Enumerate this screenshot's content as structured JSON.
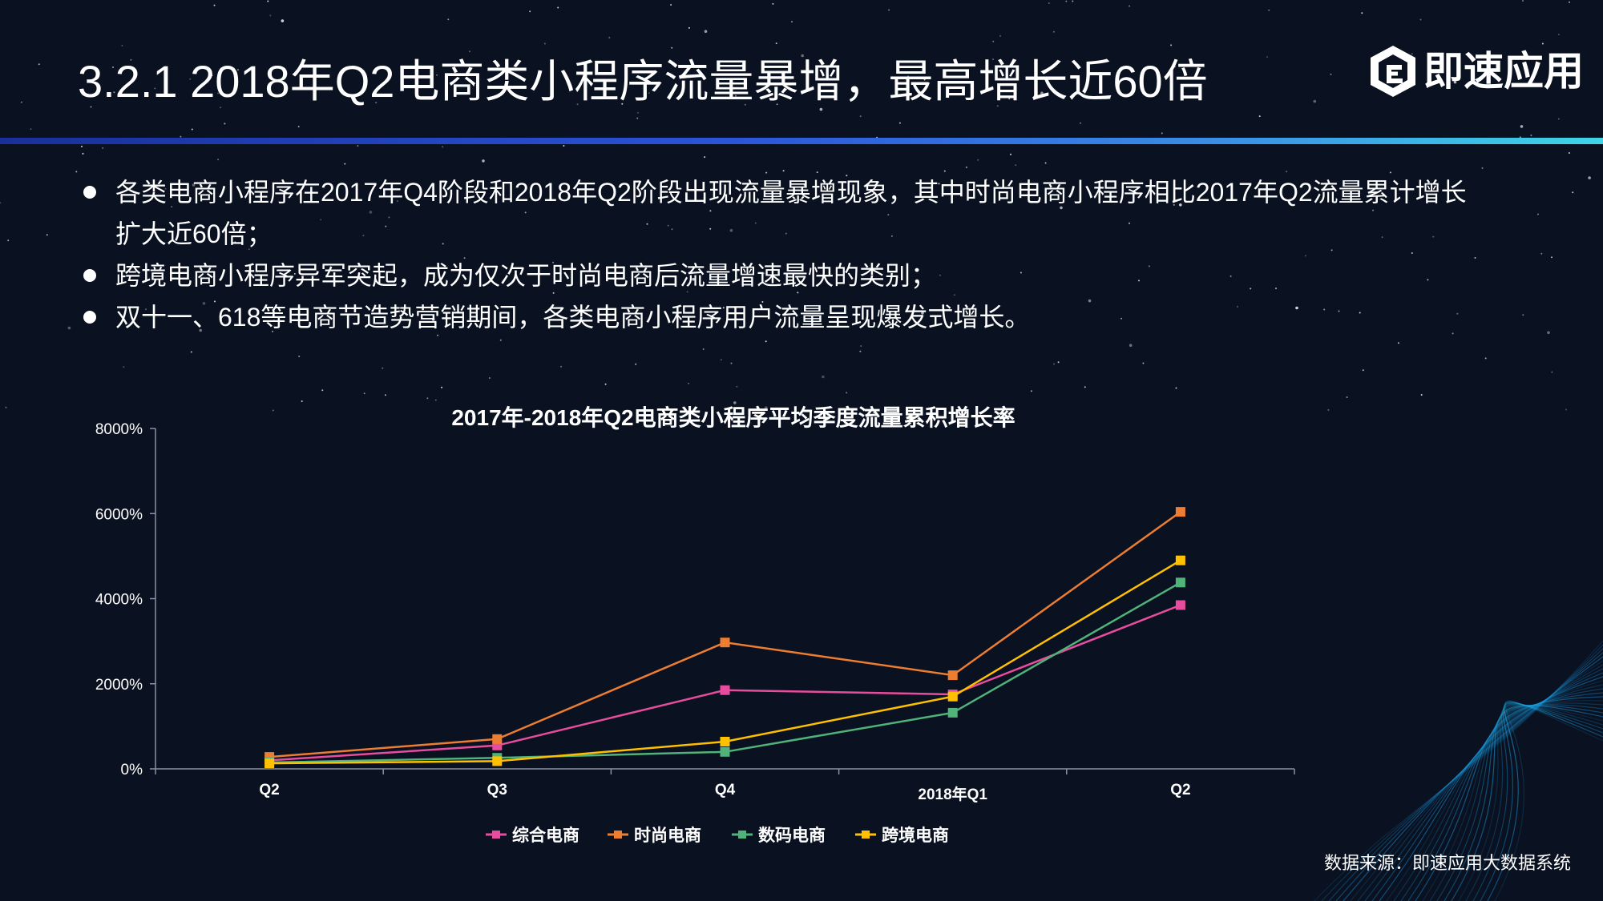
{
  "title": "3.2.1 2018年Q2电商类小程序流量暴增，最高增长近60倍",
  "logo": {
    "icon": "e-hexagon-logo-icon",
    "text": "即速应用"
  },
  "bullets": [
    "各类电商小程序在2017年Q4阶段和2018年Q2阶段出现流量暴增现象，其中时尚电商小程序相比2017年Q2流量累计增长扩大近60倍；",
    "跨境电商小程序异军突起，成为仅次于时尚电商后流量增速最快的类别；",
    "双十一、618等电商节造势营销期间，各类电商小程序用户流量呈现爆发式增长。"
  ],
  "source": "数据来源：即速应用大数据系统",
  "colors": {
    "background": "#0a1120",
    "accent_bar_start": "#1a2f9a",
    "accent_bar_end": "#3ed6e6"
  },
  "chart_data": {
    "type": "line",
    "title": "2017年-2018年Q2电商类小程序平均季度流量累积增长率",
    "categories": [
      "Q2",
      "Q3",
      "Q4",
      "2018年Q1",
      "Q2"
    ],
    "y_ticks": [
      "0%",
      "2000%",
      "4000%",
      "6000%",
      "8000%"
    ],
    "ylim": [
      0,
      8000
    ],
    "grid": false,
    "legend_position": "bottom",
    "series": [
      {
        "name": "综合电商",
        "color": "#e84c9e",
        "values": [
          200,
          550,
          1850,
          1750,
          3850
        ]
      },
      {
        "name": "时尚电商",
        "color": "#ed7d31",
        "values": [
          280,
          700,
          2970,
          2200,
          6040
        ]
      },
      {
        "name": "数码电商",
        "color": "#4fb37a",
        "values": [
          150,
          260,
          400,
          1320,
          4380
        ]
      },
      {
        "name": "跨境电商",
        "color": "#ffc000",
        "values": [
          130,
          180,
          640,
          1700,
          4900
        ]
      }
    ]
  }
}
